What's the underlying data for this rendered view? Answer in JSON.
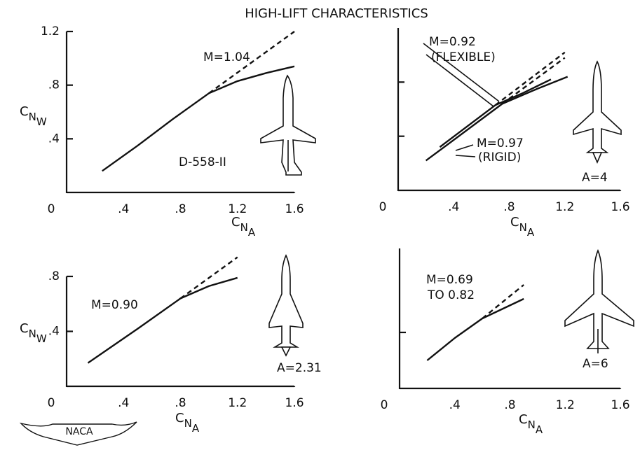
{
  "title": "HIGH-LIFT CHARACTERISTICS",
  "logo": "NACA",
  "chart_data": [
    {
      "type": "line",
      "xlim": [
        0,
        1.6
      ],
      "ylim": [
        0,
        1.2
      ],
      "xticks": [
        0,
        {
          "value": 0.4,
          "label": ".4"
        },
        {
          "value": 0.8,
          "label": ".8"
        },
        1.2,
        1.6
      ],
      "yticks": [
        {
          "value": 0.4,
          "label": ".4"
        },
        {
          "value": 0.8,
          "label": ".8"
        },
        1.2
      ],
      "ytick_labels": true,
      "xlabel": [
        "C",
        "N",
        "A"
      ],
      "ylabel": [
        "C",
        "N",
        "W"
      ],
      "series": [
        {
          "color": "#111111",
          "dashed": false,
          "x": [
            0.25,
            0.5,
            0.75,
            1.0,
            1.2,
            1.4,
            1.6
          ],
          "values": [
            0.16,
            0.35,
            0.55,
            0.74,
            0.83,
            0.89,
            0.94
          ]
        },
        {
          "color": "#111111",
          "dashed": true,
          "x": [
            1.0,
            1.6
          ],
          "values": [
            0.74,
            1.2
          ]
        }
      ],
      "annotations": [
        "M=1.04",
        "D-558-II"
      ]
    },
    {
      "type": "line",
      "xlim": [
        0,
        1.6
      ],
      "ylim": [
        0,
        1.2
      ],
      "xticks": [
        0,
        {
          "value": 0.4,
          "label": ".4"
        },
        {
          "value": 0.8,
          "label": ".8"
        },
        1.2,
        1.6
      ],
      "yticks": [
        0.4,
        0.8
      ],
      "ytick_labels": false,
      "xlabel": [
        "C",
        "N",
        "A"
      ],
      "series": [
        {
          "color": "#111111",
          "dashed": false,
          "x": [
            0.3,
            0.7,
            0.9,
            1.1
          ],
          "values": [
            0.32,
            0.63,
            0.72,
            0.82
          ]
        },
        {
          "color": "#111111",
          "dashed": true,
          "x": [
            0.7,
            1.2
          ],
          "values": [
            0.63,
            1.02
          ]
        },
        {
          "color": "#111111",
          "dashed": false,
          "x": [
            0.2,
            0.75,
            1.0,
            1.22
          ],
          "values": [
            0.22,
            0.64,
            0.75,
            0.84
          ]
        },
        {
          "color": "#111111",
          "dashed": true,
          "x": [
            0.75,
            1.2
          ],
          "values": [
            0.64,
            0.98
          ]
        }
      ],
      "annotations": [
        "M=0.92",
        "(FLEXIBLE)",
        "M=0.97",
        "(RIGID)",
        "A=4"
      ]
    },
    {
      "type": "line",
      "xlim": [
        0,
        1.6
      ],
      "ylim": [
        0,
        0.8
      ],
      "xticks": [
        0,
        {
          "value": 0.4,
          "label": ".4"
        },
        {
          "value": 0.8,
          "label": ".8"
        },
        1.2,
        1.6
      ],
      "yticks": [
        {
          "value": 0.4,
          "label": ".4"
        },
        {
          "value": 0.8,
          "label": ".8"
        }
      ],
      "ytick_labels": true,
      "xlabel": [
        "C",
        "N",
        "A"
      ],
      "ylabel": [
        "C",
        "N",
        "W"
      ],
      "series": [
        {
          "color": "#111111",
          "dashed": false,
          "x": [
            0.15,
            0.5,
            0.8,
            1.0,
            1.2
          ],
          "values": [
            0.17,
            0.42,
            0.64,
            0.73,
            0.79
          ]
        },
        {
          "color": "#111111",
          "dashed": true,
          "x": [
            0.8,
            1.2
          ],
          "values": [
            0.64,
            0.94
          ]
        }
      ],
      "annotations": [
        "M=0.90",
        "A=2.31"
      ]
    },
    {
      "type": "line",
      "xlim": [
        0,
        1.6
      ],
      "ylim": [
        0,
        1.0
      ],
      "xticks": [
        0,
        {
          "value": 0.4,
          "label": ".4"
        },
        {
          "value": 0.8,
          "label": ".8"
        },
        1.2,
        1.6
      ],
      "yticks": [
        0.4
      ],
      "ytick_labels": false,
      "xlabel": [
        "C",
        "N",
        "A"
      ],
      "series": [
        {
          "color": "#111111",
          "dashed": false,
          "x": [
            0.2,
            0.4,
            0.6,
            0.9
          ],
          "values": [
            0.2,
            0.36,
            0.5,
            0.64
          ]
        },
        {
          "color": "#111111",
          "dashed": true,
          "x": [
            0.6,
            0.9
          ],
          "values": [
            0.5,
            0.74
          ]
        }
      ],
      "annotations": [
        "M=0.69",
        "TO 0.82",
        "A=6"
      ]
    }
  ]
}
